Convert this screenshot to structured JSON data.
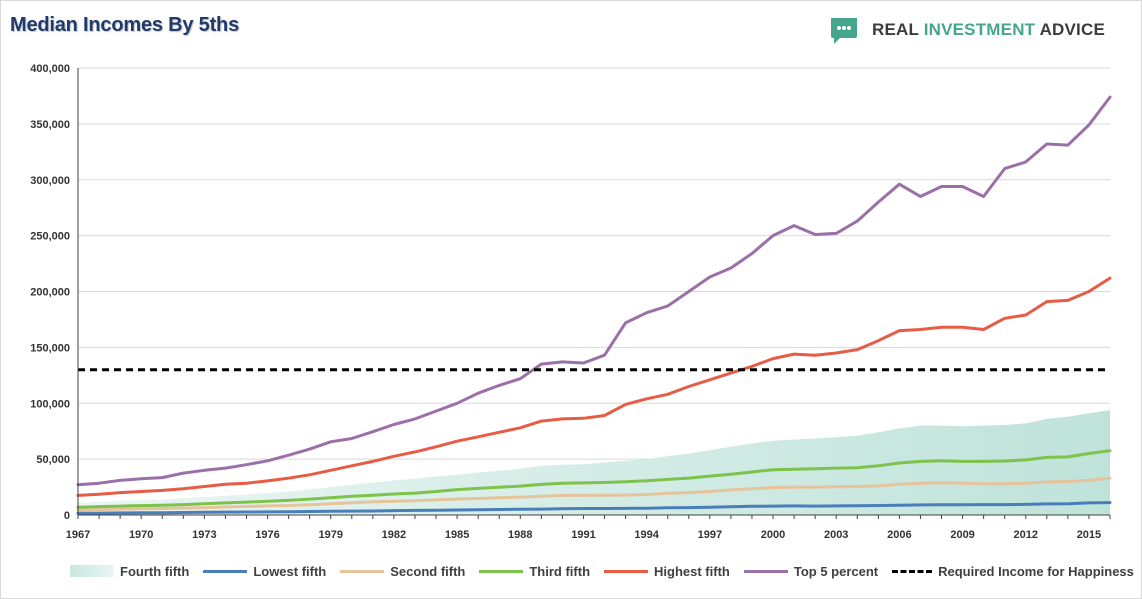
{
  "header": {
    "title": "Median Incomes By 5ths",
    "brand": {
      "word1": "REAL ",
      "word2": "INVESTMENT ",
      "word3": "ADVICE",
      "logo_icon": "speech-bubble-shield-icon",
      "logo_color": "#45a68d"
    }
  },
  "chart_data": {
    "type": "line",
    "title": "Median Incomes By 5ths",
    "xlabel": "",
    "ylabel": "",
    "xlim": [
      1967,
      2016
    ],
    "ylim": [
      0,
      400000
    ],
    "yticks": [
      0,
      50000,
      100000,
      150000,
      200000,
      250000,
      300000,
      350000,
      400000
    ],
    "ytick_labels": [
      "0",
      "50,000",
      "100,000",
      "150,000",
      "200,000",
      "250,000",
      "300,000",
      "350,000",
      "400,000"
    ],
    "xticks": [
      1967,
      1970,
      1973,
      1976,
      1979,
      1982,
      1985,
      1988,
      1991,
      1994,
      1997,
      2000,
      2003,
      2006,
      2009,
      2012,
      2015
    ],
    "xtick_labels": [
      "1967",
      "1970",
      "1973",
      "1976",
      "1979",
      "1982",
      "1985",
      "1988",
      "1991",
      "1994",
      "1997",
      "2000",
      "2003",
      "2006",
      "2009",
      "2012",
      "2015"
    ],
    "grid": "horizontal",
    "legend_position": "bottom",
    "x": [
      1967,
      1968,
      1969,
      1970,
      1971,
      1972,
      1973,
      1974,
      1975,
      1976,
      1977,
      1978,
      1979,
      1980,
      1981,
      1982,
      1983,
      1984,
      1985,
      1986,
      1987,
      1988,
      1989,
      1990,
      1991,
      1992,
      1993,
      1994,
      1995,
      1996,
      1997,
      1998,
      1999,
      2000,
      2001,
      2002,
      2003,
      2004,
      2005,
      2006,
      2007,
      2008,
      2009,
      2010,
      2011,
      2012,
      2013,
      2014,
      2015,
      2016
    ],
    "series": [
      {
        "name": "Fourth fifth",
        "style": "area",
        "color": "#bfe3da",
        "values": [
          11000,
          11800,
          12700,
          13300,
          13800,
          15000,
          16100,
          17200,
          18200,
          19600,
          21000,
          22900,
          25000,
          27000,
          29000,
          31000,
          32500,
          34500,
          36000,
          38000,
          39500,
          41500,
          44000,
          45000,
          45500,
          47000,
          48500,
          50000,
          52500,
          55000,
          58000,
          61000,
          64000,
          66500,
          67500,
          68500,
          69500,
          71000,
          74000,
          77500,
          80000,
          80000,
          79500,
          80000,
          80500,
          82000,
          86000,
          88000,
          91000,
          94000
        ]
      },
      {
        "name": "Lowest fifth",
        "style": "line",
        "color": "#4a7ebb",
        "values": [
          1500,
          1700,
          1900,
          2000,
          2100,
          2200,
          2400,
          2600,
          2700,
          2800,
          2900,
          3100,
          3300,
          3500,
          3600,
          3900,
          4100,
          4300,
          4500,
          4700,
          4900,
          5100,
          5300,
          5600,
          5800,
          5800,
          5900,
          6100,
          6400,
          6600,
          6900,
          7300,
          7800,
          8000,
          8100,
          8000,
          8100,
          8300,
          8500,
          8700,
          9000,
          9100,
          9200,
          9300,
          9300,
          9500,
          9900,
          10100,
          10800,
          11100
        ]
      },
      {
        "name": "Second fifth",
        "style": "line",
        "color": "#e6c39b",
        "values": [
          4500,
          4900,
          5300,
          5600,
          5800,
          6200,
          6600,
          7200,
          7700,
          8100,
          8500,
          9200,
          10000,
          11000,
          11800,
          12300,
          12800,
          13500,
          14300,
          14800,
          15500,
          16000,
          16700,
          17500,
          17500,
          17600,
          17800,
          18300,
          19500,
          20000,
          21000,
          22500,
          23500,
          24500,
          25000,
          25000,
          25300,
          25500,
          26000,
          27500,
          28500,
          28800,
          28500,
          28000,
          28000,
          28500,
          29500,
          30000,
          31000,
          33000
        ]
      },
      {
        "name": "Third fifth",
        "style": "line",
        "color": "#7dc24b",
        "values": [
          7000,
          7500,
          8000,
          8400,
          8700,
          9300,
          10000,
          10800,
          11500,
          12300,
          13100,
          14200,
          15400,
          16700,
          17600,
          18800,
          19600,
          21000,
          22700,
          23800,
          24900,
          25900,
          27400,
          28500,
          28700,
          29100,
          29800,
          30600,
          31900,
          33000,
          34800,
          36500,
          38500,
          40500,
          41000,
          41300,
          42000,
          42300,
          44000,
          46500,
          48000,
          48500,
          48000,
          48000,
          48300,
          49300,
          51500,
          52000,
          55000,
          57500
        ]
      },
      {
        "name": "Highest fifth",
        "style": "line",
        "color": "#e65c45",
        "values": [
          17500,
          18500,
          20000,
          21000,
          22000,
          23500,
          25500,
          27500,
          28500,
          30500,
          33000,
          36000,
          40000,
          44000,
          48000,
          52500,
          56500,
          61000,
          66000,
          70000,
          74000,
          78000,
          84000,
          86000,
          86500,
          89000,
          99000,
          104000,
          108000,
          115000,
          121000,
          127000,
          133000,
          140000,
          144000,
          143000,
          145000,
          148000,
          156000,
          165000,
          166000,
          168000,
          168000,
          166000,
          176000,
          179000,
          191000,
          192000,
          200000,
          212000
        ]
      },
      {
        "name": "Top 5 percent",
        "style": "line",
        "color": "#9b6fa8",
        "values": [
          27000,
          28500,
          31000,
          32500,
          33500,
          37500,
          40000,
          42000,
          45000,
          48500,
          53500,
          59000,
          65500,
          68500,
          74500,
          81000,
          86000,
          93000,
          100000,
          109000,
          116000,
          122000,
          135000,
          137000,
          136000,
          143000,
          172000,
          181000,
          187000,
          200000,
          213000,
          221000,
          234000,
          250000,
          259000,
          251000,
          252000,
          263000,
          280000,
          296000,
          285000,
          294000,
          294000,
          285000,
          310000,
          316000,
          332000,
          331000,
          349000,
          374000
        ]
      },
      {
        "name": "Required Income for Happiness",
        "style": "dashed",
        "color": "#000000",
        "values": [
          130000,
          130000,
          130000,
          130000,
          130000,
          130000,
          130000,
          130000,
          130000,
          130000,
          130000,
          130000,
          130000,
          130000,
          130000,
          130000,
          130000,
          130000,
          130000,
          130000,
          130000,
          130000,
          130000,
          130000,
          130000,
          130000,
          130000,
          130000,
          130000,
          130000,
          130000,
          130000,
          130000,
          130000,
          130000,
          130000,
          130000,
          130000,
          130000,
          130000,
          130000,
          130000,
          130000,
          130000,
          130000,
          130000,
          130000,
          130000,
          130000,
          130000
        ]
      }
    ]
  }
}
